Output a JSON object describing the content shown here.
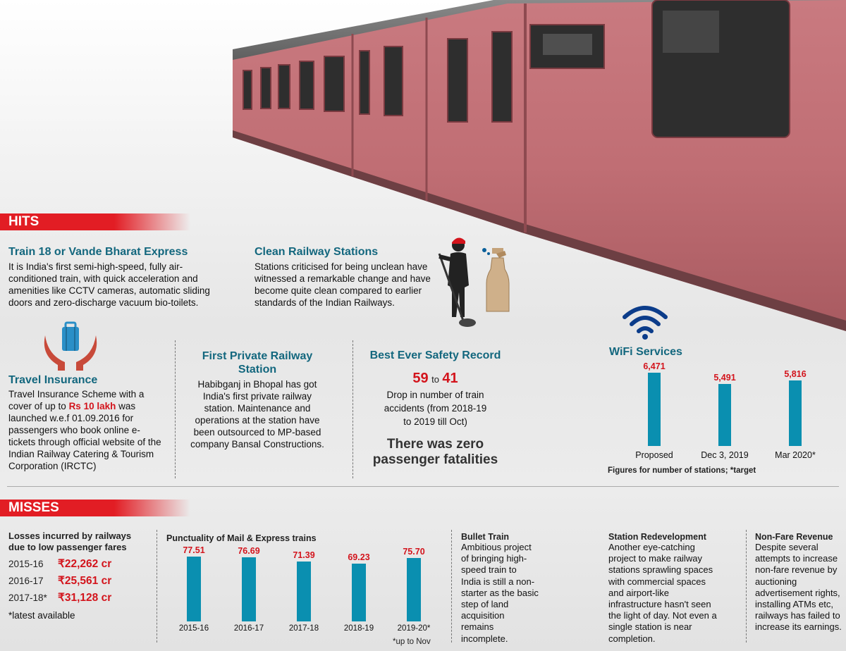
{
  "hits": {
    "header": "HITS",
    "train18": {
      "title": "Train 18 or Vande Bharat Express",
      "body": "It is India's first semi-high-speed, fully air-conditioned train, with quick acceleration and amenities like CCTV cameras, automatic sliding doors and zero-discharge vacuum bio-toilets."
    },
    "clean": {
      "title": "Clean Railway Stations",
      "body": "Stations criticised for being unclean have witnessed a remarkable change and have become quite clean compared to earlier standards of the Indian Railways."
    },
    "insurance": {
      "title": "Travel Insurance",
      "body_pre": "Travel Insurance Scheme with a cover of up to ",
      "highlight": "Rs 10 lakh",
      "body_post": " was launched w.e.f 01.09.2016 for passengers who book online e-tickets through official website of the Indian Railway Catering & Tourism Corporation (IRCTC)"
    },
    "private_station": {
      "title": "First Private Railway Station",
      "body": "Habibganj in Bhopal has got India's first private railway station. Maintenance and operations at the station have been outsourced to MP-based company Bansal Constructions."
    },
    "safety": {
      "title": "Best Ever Safety Record",
      "from": "59",
      "to_word": "to",
      "to": "41",
      "body": "Drop in number of train accidents (from 2018-19 to 2019 till Oct)",
      "big": "There was zero passenger fatalities"
    },
    "wifi": {
      "title": "WiFi Services",
      "note": "Figures for number of stations; *target"
    }
  },
  "misses": {
    "header": "MISSES",
    "losses": {
      "title": "Losses incurred by railways due to low passenger fares",
      "rows": [
        {
          "year": "2015-16",
          "value": "₹22,262 cr"
        },
        {
          "year": "2016-17",
          "value": "₹25,561 cr"
        },
        {
          "year": "2017-18*",
          "value": "₹31,128 cr"
        }
      ],
      "note": "*latest available"
    },
    "punctuality": {
      "title": "Punctuality of Mail & Express trains",
      "note": "*up to Nov"
    },
    "bullet": {
      "title": "Bullet Train",
      "body": "Ambitious project of bringing high-speed train to India is still a non-starter as the basic step of land acquisition remains incomplete."
    },
    "redevelopment": {
      "title": "Station Redevelopment",
      "body": "Another eye-catching project to make railway stations sprawling spaces with commercial spaces and airport-like infrastructure hasn't seen the light of day. Not even a single station is near completion."
    },
    "nonfare": {
      "title": "Non-Fare Revenue",
      "body": "Despite several attempts to increase non-fare revenue by auctioning advertisement rights, installing ATMs etc, railways has failed to increase its earnings."
    }
  },
  "chart_data": [
    {
      "type": "bar",
      "title": "WiFi Services",
      "categories": [
        "Proposed",
        "Dec 3, 2019",
        "Mar 2020*"
      ],
      "values": [
        6471,
        5491,
        5816
      ],
      "value_labels": [
        "6,471",
        "5,491",
        "5,816"
      ],
      "ylim": [
        0,
        6471
      ],
      "color": "#0a8fb0",
      "label_color": "#d3141c"
    },
    {
      "type": "bar",
      "title": "Punctuality of Mail & Express trains",
      "categories": [
        "2015-16",
        "2016-17",
        "2017-18",
        "2018-19",
        "2019-20*"
      ],
      "values": [
        77.51,
        76.69,
        71.39,
        69.23,
        75.7
      ],
      "value_labels": [
        "77.51",
        "76.69",
        "71.39",
        "69.23",
        "75.70"
      ],
      "ylim": [
        0,
        77.51
      ],
      "color": "#0a8fb0",
      "label_color": "#d3141c"
    }
  ],
  "colors": {
    "accent_red": "#e21d24",
    "heading_teal": "#13677e",
    "bar_blue": "#0a8fb0"
  },
  "icons": [
    "train-image",
    "cleaner-icon",
    "spray-bottle-icon",
    "insurance-hands-icon",
    "wifi-icon"
  ]
}
